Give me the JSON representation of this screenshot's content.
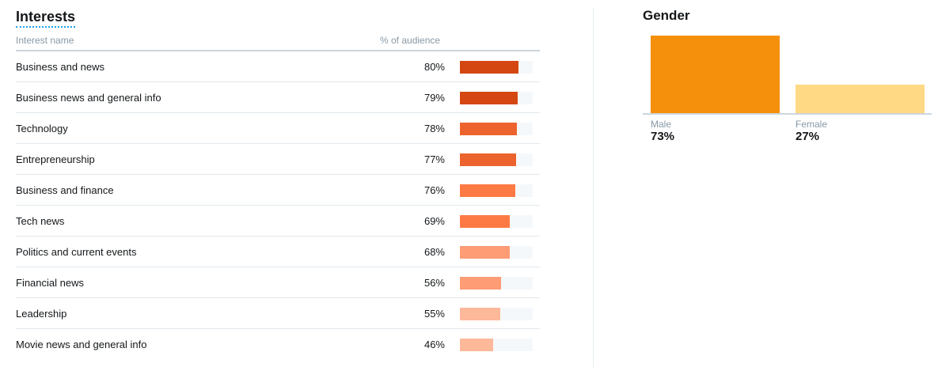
{
  "interests": {
    "title": "Interests",
    "col_name_header": "Interest name",
    "col_pct_header": "% of audience",
    "rows": [
      {
        "name": "Business and news",
        "percent_label": "80%",
        "value": 80,
        "color": "#d44713"
      },
      {
        "name": "Business news and general info",
        "percent_label": "79%",
        "value": 79,
        "color": "#d44713"
      },
      {
        "name": "Technology",
        "percent_label": "78%",
        "value": 78,
        "color": "#ec632d"
      },
      {
        "name": "Entrepreneurship",
        "percent_label": "77%",
        "value": 77,
        "color": "#ec632d"
      },
      {
        "name": "Business and finance",
        "percent_label": "76%",
        "value": 76,
        "color": "#fe7a45"
      },
      {
        "name": "Tech news",
        "percent_label": "69%",
        "value": 69,
        "color": "#fe7a45"
      },
      {
        "name": "Politics and current events",
        "percent_label": "68%",
        "value": 68,
        "color": "#fd9c75"
      },
      {
        "name": "Financial news",
        "percent_label": "56%",
        "value": 56,
        "color": "#fd9c75"
      },
      {
        "name": "Leadership",
        "percent_label": "55%",
        "value": 55,
        "color": "#feb89a"
      },
      {
        "name": "Movie news and general info",
        "percent_label": "46%",
        "value": 46,
        "color": "#feb89a"
      }
    ]
  },
  "gender": {
    "title": "Gender",
    "items": [
      {
        "label": "Male",
        "percent_label": "73%",
        "value": 73,
        "color": "#f4900c"
      },
      {
        "label": "Female",
        "percent_label": "27%",
        "value": 27,
        "color": "#ffd983"
      }
    ]
  },
  "colors": {
    "track": "#f5f8fa",
    "divider": "#e1e8ed",
    "accent_underline": "#1da1f2"
  },
  "chart_data": [
    {
      "type": "bar",
      "title": "Interests",
      "xlabel": "Interest name",
      "ylabel": "% of audience",
      "categories": [
        "Business and news",
        "Business news and general info",
        "Technology",
        "Entrepreneurship",
        "Business and finance",
        "Tech news",
        "Politics and current events",
        "Financial news",
        "Leadership",
        "Movie news and general info"
      ],
      "values": [
        80,
        79,
        78,
        77,
        76,
        69,
        68,
        56,
        55,
        46
      ],
      "ylim": [
        0,
        100
      ]
    },
    {
      "type": "bar",
      "title": "Gender",
      "categories": [
        "Male",
        "Female"
      ],
      "values": [
        73,
        27
      ],
      "ylim": [
        0,
        100
      ]
    }
  ]
}
